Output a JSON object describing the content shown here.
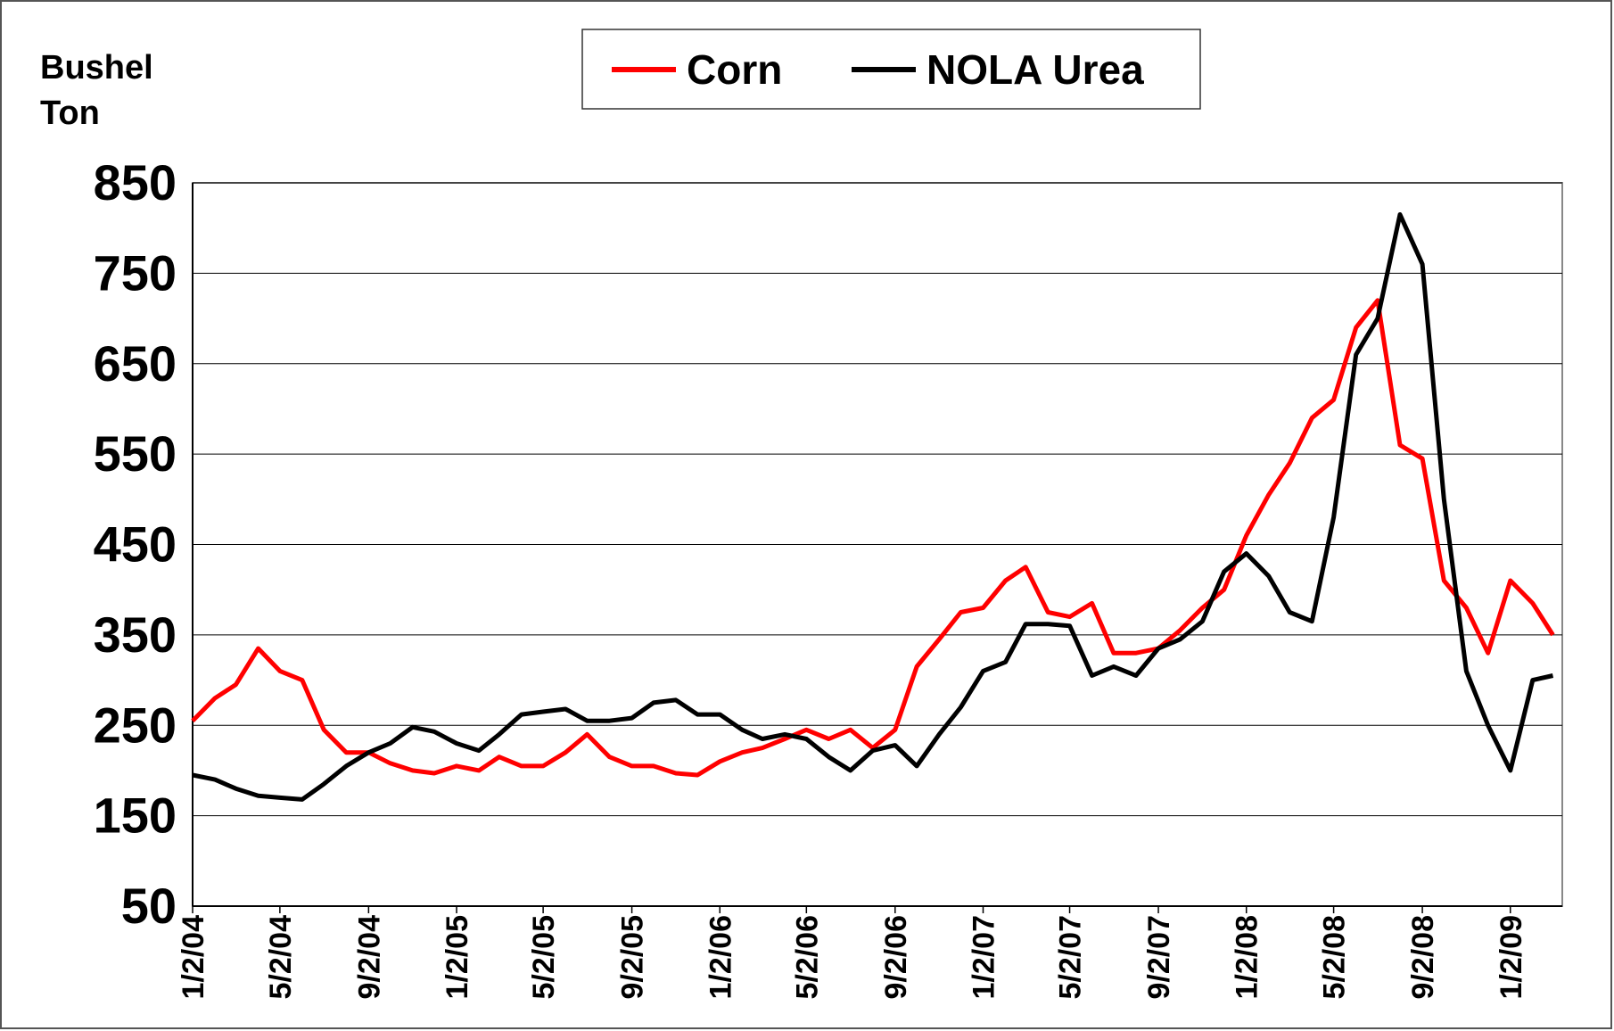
{
  "chart_data": {
    "type": "line",
    "y_label_lines": [
      "Bushel",
      "Ton"
    ],
    "x": [
      "1/2/04",
      "2/2/04",
      "3/2/04",
      "4/2/04",
      "5/2/04",
      "6/2/04",
      "7/2/04",
      "8/2/04",
      "9/2/04",
      "10/2/04",
      "11/2/04",
      "12/2/04",
      "1/2/05",
      "2/2/05",
      "3/2/05",
      "4/2/05",
      "5/2/05",
      "6/2/05",
      "7/2/05",
      "8/2/05",
      "9/2/05",
      "10/2/05",
      "11/2/05",
      "12/2/05",
      "1/2/06",
      "2/2/06",
      "3/2/06",
      "4/2/06",
      "5/2/06",
      "6/2/06",
      "7/2/06",
      "8/2/06",
      "9/2/06",
      "10/2/06",
      "11/2/06",
      "12/2/06",
      "1/2/07",
      "2/2/07",
      "3/2/07",
      "4/2/07",
      "5/2/07",
      "6/2/07",
      "7/2/07",
      "8/2/07",
      "9/2/07",
      "10/2/07",
      "11/2/07",
      "12/2/07",
      "1/2/08",
      "2/2/08",
      "3/2/08",
      "4/2/08",
      "5/2/08",
      "6/2/08",
      "7/2/08",
      "8/2/08",
      "9/2/08",
      "10/2/08",
      "11/2/08",
      "12/2/08",
      "1/2/09",
      "2/2/09",
      "3/2/09"
    ],
    "series": [
      {
        "name": "Corn",
        "color": "#ff0000",
        "values": [
          255,
          280,
          295,
          335,
          310,
          300,
          245,
          220,
          220,
          208,
          200,
          197,
          205,
          200,
          215,
          205,
          205,
          220,
          240,
          215,
          205,
          205,
          197,
          195,
          210,
          220,
          225,
          235,
          245,
          235,
          245,
          225,
          245,
          315,
          345,
          375,
          380,
          410,
          425,
          375,
          370,
          385,
          330,
          330,
          335,
          355,
          380,
          400,
          460,
          505,
          540,
          590,
          610,
          690,
          720,
          560,
          545,
          410,
          380,
          330,
          410,
          385,
          350
        ]
      },
      {
        "name": "NOLA Urea",
        "color": "#000000",
        "values": [
          195,
          190,
          180,
          172,
          170,
          168,
          185,
          205,
          220,
          230,
          248,
          243,
          230,
          222,
          240,
          262,
          265,
          268,
          255,
          255,
          258,
          275,
          278,
          262,
          262,
          245,
          235,
          240,
          235,
          215,
          200,
          222,
          228,
          205,
          240,
          270,
          310,
          320,
          362,
          362,
          360,
          305,
          315,
          305,
          335,
          345,
          365,
          420,
          440,
          415,
          375,
          365,
          480,
          660,
          700,
          815,
          760,
          500,
          310,
          250,
          200,
          300,
          305
        ]
      }
    ],
    "xlim": [
      "1/2/04",
      "3/15/09"
    ],
    "xticks": [
      "1/2/04",
      "5/2/04",
      "9/2/04",
      "1/2/05",
      "5/2/05",
      "9/2/05",
      "1/2/06",
      "5/2/06",
      "9/2/06",
      "1/2/07",
      "5/2/07",
      "9/2/07",
      "1/2/08",
      "5/2/08",
      "9/2/08",
      "1/2/09"
    ],
    "ylim": [
      50,
      850
    ],
    "yticks": [
      50,
      150,
      250,
      350,
      450,
      550,
      650,
      750,
      850
    ],
    "grid": true
  }
}
